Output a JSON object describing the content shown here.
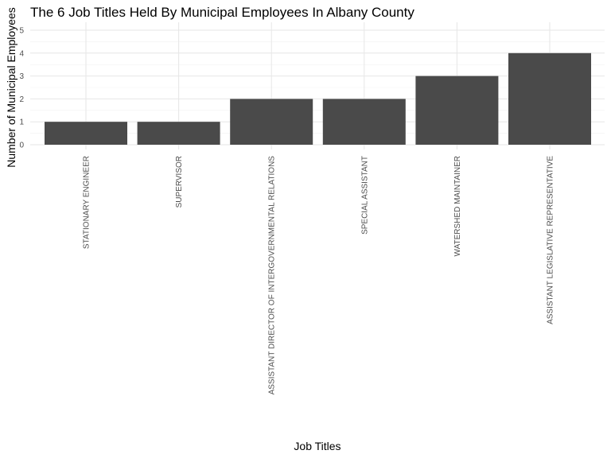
{
  "chart_data": {
    "type": "bar",
    "title": "The 6 Job Titles Held By Municipal Employees In Albany County",
    "xlabel": "Job Titles",
    "ylabel": "Number of Municipal Employees",
    "categories": [
      "STATIONARY ENGINEER",
      "SUPERVISOR",
      "ASSISTANT DIRECTOR OF INTERGOVERNMENTAL RELATIONS",
      "SPECIAL ASSISTANT",
      "WATERSHED MAINTAINER",
      "ASSISTANT LEGISLATIVE REPRESENTATIVE"
    ],
    "values": [
      1,
      1,
      2,
      2,
      3,
      4
    ],
    "ylim": [
      0,
      5
    ],
    "yticks": [
      0,
      1,
      2,
      3,
      4,
      5
    ],
    "grid": true,
    "legend": "none",
    "colors": {
      "bar": "#4a4a4a",
      "grid_major": "#e6e6e6",
      "grid_minor": "#f2f2f2",
      "text": "#000000",
      "tick_text": "#4d4d4d"
    }
  }
}
